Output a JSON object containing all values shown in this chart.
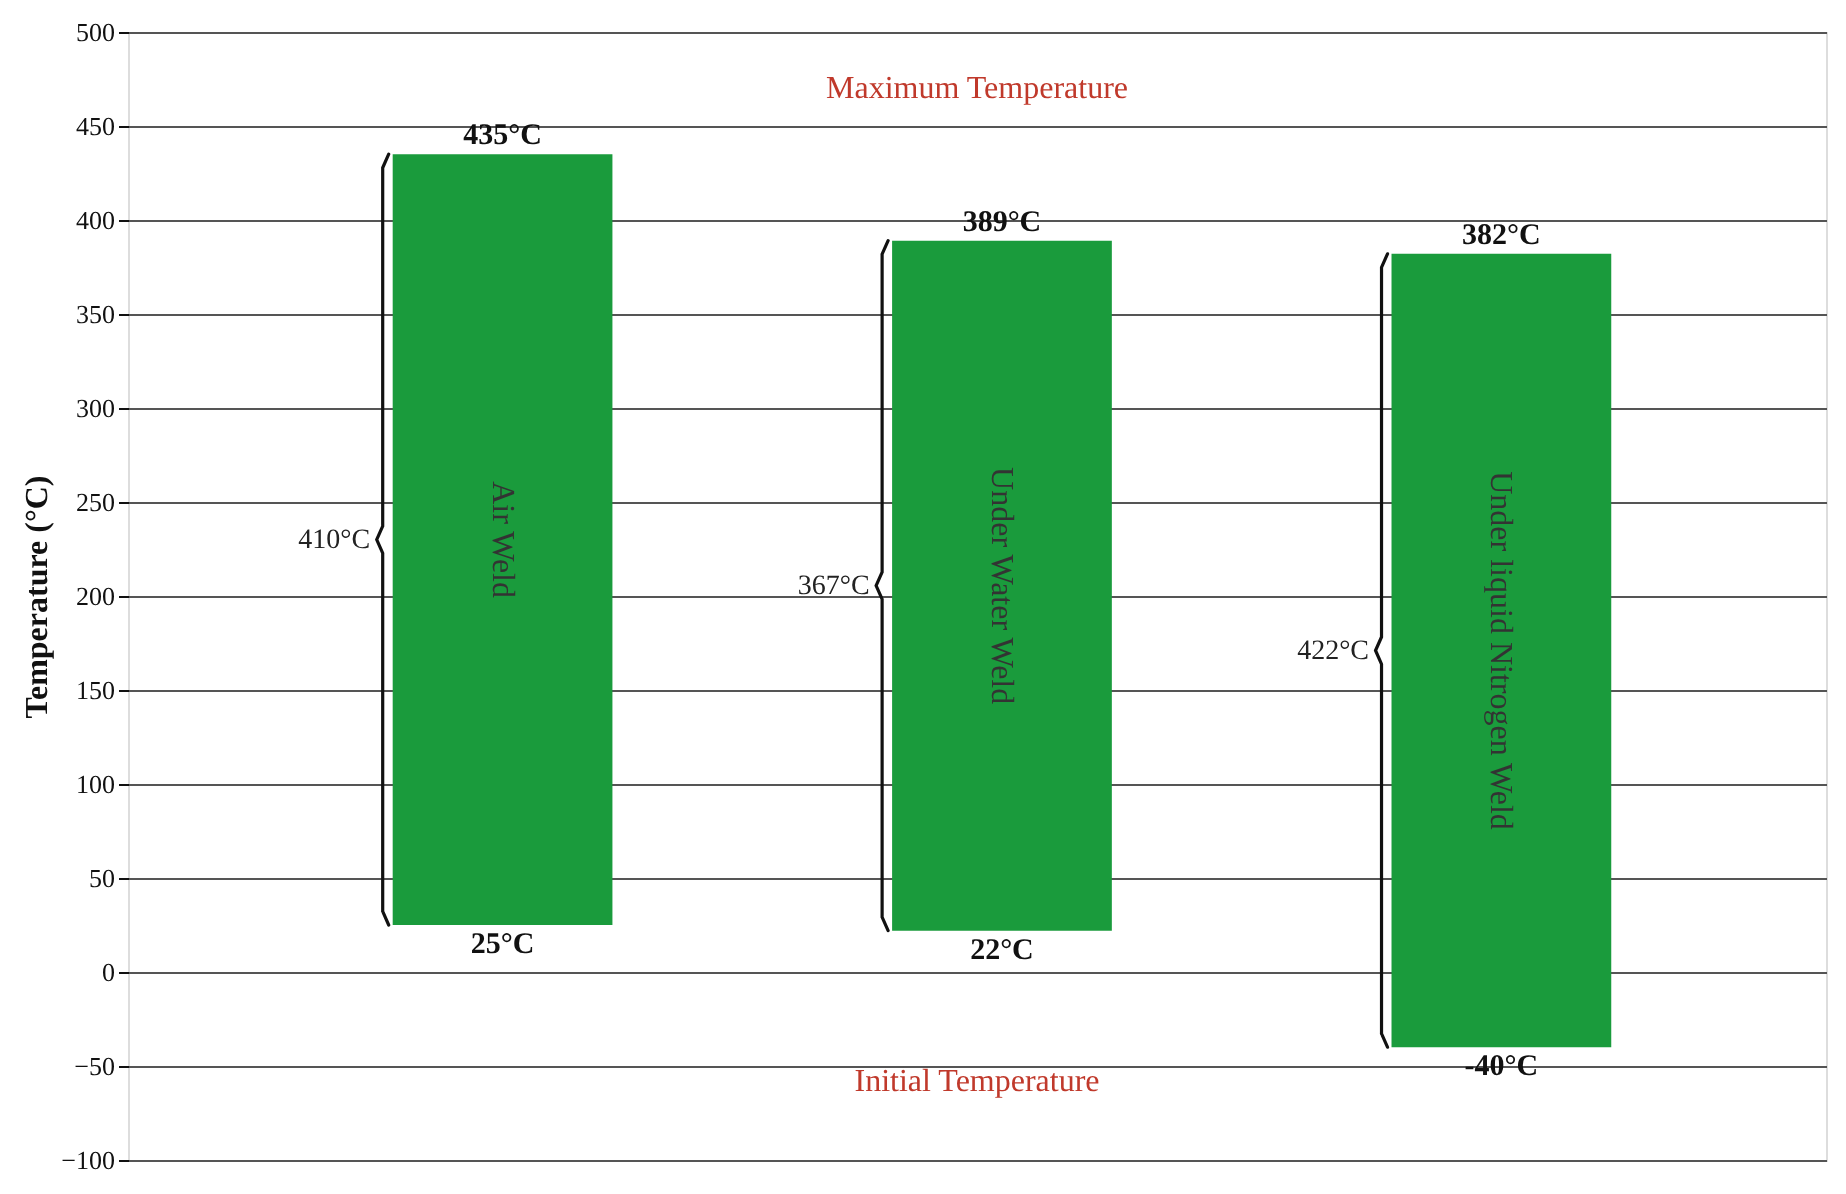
{
  "chart_data": {
    "type": "bar",
    "ylabel": "Temperature (°C)",
    "categories": [
      "Air Weld",
      "Under Water Weld",
      "Under liquid Nitrogen Weld"
    ],
    "base": [
      25,
      22,
      -40
    ],
    "values": [
      410,
      367,
      422
    ],
    "color": "#1a9b3c",
    "ylim": [
      -100,
      500
    ],
    "yticks": [
      -100,
      -50,
      0,
      50,
      100,
      150,
      200,
      250,
      300,
      350,
      400,
      450,
      500
    ],
    "grid": "y",
    "tick_labels": "y",
    "annotations": [
      "Maximum Temperature",
      "Initial Temperature",
      "410°C",
      "367°C",
      "422°C",
      {
        "text": "435°C",
        "x": "Air Weld",
        "y": 435
      },
      {
        "text": "25°C",
        "x": "Air Weld",
        "y": 25
      },
      {
        "text": "389°C",
        "x": "Under Water Weld",
        "y": 389
      },
      {
        "text": "22°C",
        "x": "Under Water Weld",
        "y": 22
      },
      {
        "text": "382°C",
        "x": "Under liquid Nitrogen Weld",
        "y": 382
      },
      {
        "text": "-40°C",
        "x": "Under liquid Nitrogen Weld",
        "y": -40
      }
    ]
  }
}
